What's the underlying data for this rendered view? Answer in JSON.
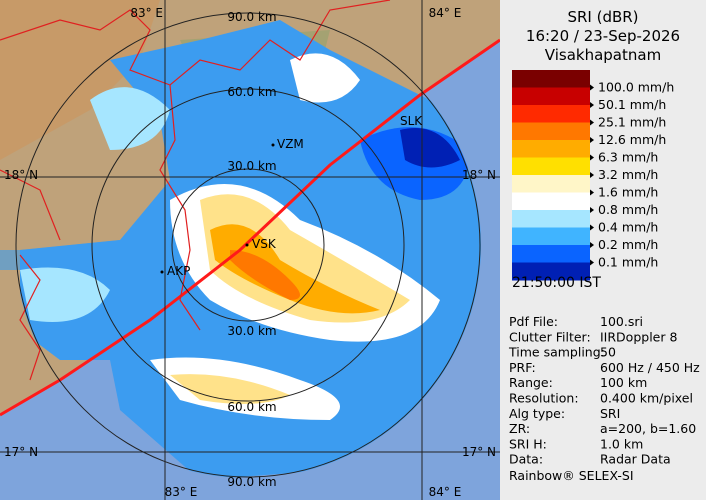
{
  "header": {
    "title": "SRI (dBR)",
    "datetime": "16:20 / 23-Sep-2026",
    "station": "Visakhapatnam"
  },
  "legend": {
    "colors": [
      "#7a0000",
      "#c80000",
      "#ff2a00",
      "#ff7800",
      "#ffac00",
      "#ffe000",
      "#fff6c8",
      "#ffffff",
      "#a6e6ff",
      "#40b4ff",
      "#0a64ff",
      "#0020b4"
    ],
    "labels": [
      "100.0 mm/h",
      "50.1 mm/h",
      "25.1 mm/h",
      "12.6 mm/h",
      "6.3 mm/h",
      "3.2 mm/h",
      "1.6 mm/h",
      "0.8 mm/h",
      "0.4 mm/h",
      "0.2 mm/h",
      "0.1 mm/h"
    ]
  },
  "time": "21:50:00  IST",
  "info": [
    [
      "Pdf File:",
      "100.sri"
    ],
    [
      "Clutter Filter:",
      "IIRDoppler 8"
    ],
    [
      "Time sampling:",
      "50"
    ],
    [
      "PRF:",
      "600 Hz / 450 Hz"
    ],
    [
      "Range:",
      "100 km"
    ],
    [
      "Resolution:",
      "0.400 km/pixel"
    ],
    [
      "Alg type:",
      "SRI"
    ],
    [
      "ZR:",
      "a=200, b=1.60"
    ],
    [
      "SRI H:",
      "1.0 km"
    ],
    [
      "Data:",
      "Radar Data"
    ]
  ],
  "footer": "Rainbow® SELEX-SI",
  "map": {
    "lon_labels": [
      "83° E",
      "84° E"
    ],
    "lat_labels": [
      "18° N",
      "17° N"
    ],
    "ring_labels": [
      "30.0 km",
      "60.0 km",
      "90.0 km"
    ],
    "places": [
      "VZM",
      "VSK",
      "AKP",
      "SLK"
    ]
  }
}
